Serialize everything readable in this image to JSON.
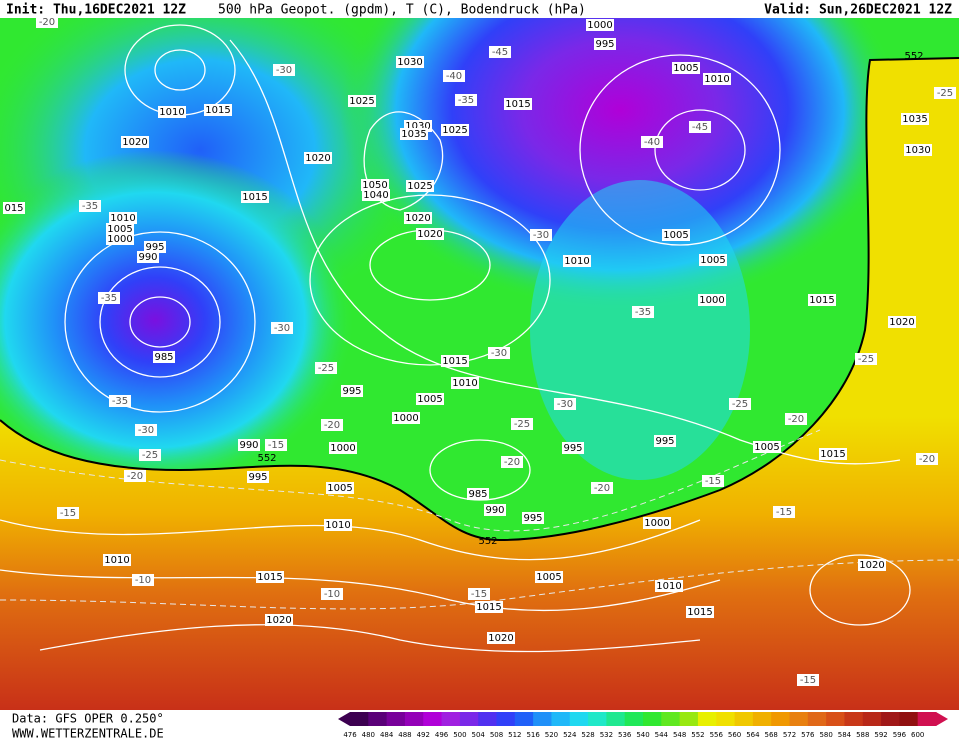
{
  "header": {
    "init": "Init: Thu,16DEC2021 12Z",
    "title": "500 hPa Geopot. (gpdm), T (C), Bodendruck (hPa)",
    "valid": "Valid: Sun,26DEC2021 12Z"
  },
  "footer": {
    "data": "Data: GFS OPER 0.250°",
    "url": "WWW.WETTERZENTRALE.DE"
  },
  "legend": {
    "labels": [
      "476",
      "480",
      "484",
      "488",
      "492",
      "496",
      "500",
      "504",
      "508",
      "512",
      "516",
      "520",
      "524",
      "528",
      "532",
      "536",
      "540",
      "544",
      "548",
      "552",
      "556",
      "560",
      "564",
      "568",
      "572",
      "576",
      "580",
      "584",
      "588",
      "592",
      "596",
      "600"
    ],
    "colors": [
      "#3c0050",
      "#5a0078",
      "#78009a",
      "#9400b8",
      "#b000d8",
      "#a020e0",
      "#7a28e8",
      "#5030f0",
      "#3040f8",
      "#2060f8",
      "#2090f8",
      "#20b8f8",
      "#20d8f0",
      "#20e8c8",
      "#20e890",
      "#20e858",
      "#30e830",
      "#60e820",
      "#98e810",
      "#e8f000",
      "#f0e000",
      "#f0c800",
      "#f0b000",
      "#f09800",
      "#e88010",
      "#e06818",
      "#d85018",
      "#c83818",
      "#b82818",
      "#a01818",
      "#901010",
      "#d01050"
    ]
  },
  "map": {
    "isobar_labels": [
      "1030",
      "1025",
      "1030",
      "1035",
      "1025",
      "1020",
      "1050",
      "1040",
      "1025",
      "1020",
      "1020",
      "1015",
      "1010",
      "1020",
      "1015",
      "1010",
      "1005",
      "1000",
      "995",
      "990",
      "985",
      "1015",
      "1010",
      "1005",
      "1000",
      "995",
      "990",
      "995",
      "1000",
      "1005",
      "1010",
      "985",
      "990",
      "995",
      "995",
      "995",
      "1000",
      "1005",
      "1015",
      "1000",
      "1005",
      "1005",
      "1010",
      "1015",
      "1000",
      "995",
      "1005",
      "1010",
      "1035",
      "1030",
      "1015",
      "1020",
      "1020",
      "1010",
      "1015",
      "1020",
      "1005",
      "1010",
      "1015",
      "1015",
      "1020",
      "015"
    ],
    "temperature_labels": [
      "-20",
      "-30",
      "-45",
      "-40",
      "-35",
      "-40",
      "-45",
      "-35",
      "-35",
      "-30",
      "-30",
      "-35",
      "-30",
      "-25",
      "-30",
      "-25",
      "-20",
      "-20",
      "-25",
      "-20",
      "-35",
      "-30",
      "-25",
      "-20",
      "-15",
      "-15",
      "-20",
      "-15",
      "-15",
      "-10",
      "-10",
      "-15",
      "-25",
      "-20",
      "-25",
      "-15"
    ],
    "height_labels": [
      "552",
      "552",
      "552"
    ]
  }
}
